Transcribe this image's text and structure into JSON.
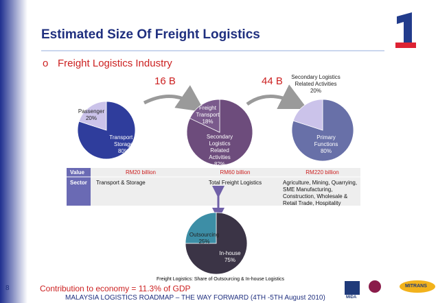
{
  "slide": {
    "title": "Estimated Size Of Freight Logistics",
    "bullet_marker": "o",
    "bullet": "Freight Logistics Industry",
    "arrow_left_label": "16 B",
    "arrow_right_label": "44 B",
    "table": {
      "rows": [
        [
          "Value",
          "RM20 billion",
          "RM60 billion",
          "RM220 billion"
        ],
        [
          "Sector",
          "Transport & Storage",
          "Total Freight Logistics",
          "Agriculture, Mining, Quarrying, SME Manufacturing, Construction, Wholesale & Retail Trade, Hospitality"
        ]
      ]
    },
    "caption": "Freight Logistics: Share of  Outsourcing & In-house Logistics",
    "page_number": "8",
    "contribution": "Contribution to economy = 11.3% of GDP",
    "footer": "MALAYSIA LOGISTICS ROADMAP – THE WAY FORWARD (4TH -5TH  August 2010)",
    "logos": [
      "MIDA",
      "MITRANS"
    ]
  },
  "chart_data": [
    {
      "type": "pie",
      "categories": [
        "Transport & Storage",
        "Passenger"
      ],
      "values": [
        80,
        20
      ],
      "value_labels": [
        "80%",
        "20%"
      ],
      "colors": [
        "#2f3d9c",
        "#cbc3ea"
      ]
    },
    {
      "type": "pie",
      "categories": [
        "Secondary Logistics Related Activities",
        "Freight Transport"
      ],
      "values": [
        82,
        18
      ],
      "value_labels": [
        "82%",
        "18%"
      ],
      "colors": [
        "#6d4c7c",
        "#7a5a8c"
      ]
    },
    {
      "type": "pie",
      "categories": [
        "Primary Functions",
        "Secondary Logistics Related Activities"
      ],
      "values": [
        80,
        20
      ],
      "value_labels": [
        "80%",
        "20%"
      ],
      "colors": [
        "#6870a8",
        "#cbc3ea"
      ]
    },
    {
      "type": "pie",
      "categories": [
        "In-house",
        "Outsourcing"
      ],
      "values": [
        75,
        25
      ],
      "value_labels": [
        "75%",
        "25%"
      ],
      "colors": [
        "#3b3446",
        "#3d8ea6"
      ]
    }
  ]
}
